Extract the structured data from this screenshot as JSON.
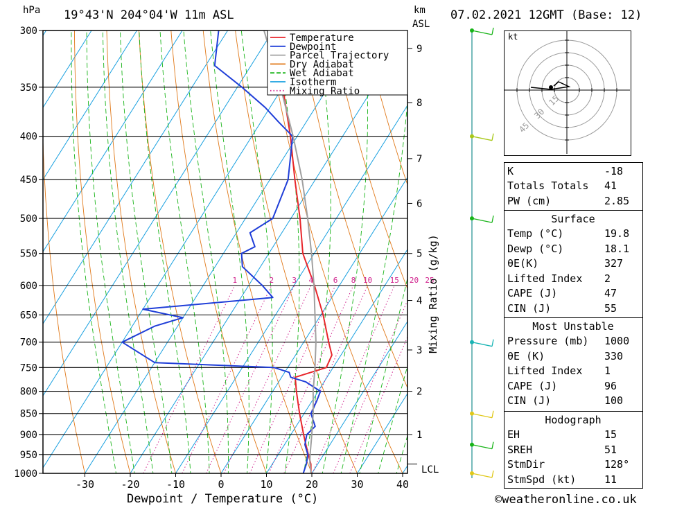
{
  "header": {
    "hpa_unit": "hPa",
    "location": "19°43'N  204°04'W  11m  ASL",
    "km_unit": "km",
    "asl_unit": "ASL",
    "datetime": "07.02.2021  12GMT  (Base: 12)"
  },
  "axes": {
    "pressure_ticks": [
      "300",
      "350",
      "400",
      "450",
      "500",
      "550",
      "600",
      "650",
      "700",
      "750",
      "800",
      "850",
      "900",
      "950",
      "1000"
    ],
    "temperature_ticks": [
      "-30",
      "-20",
      "-10",
      "0",
      "10",
      "20",
      "30",
      "40"
    ],
    "xlabel": "Dewpoint / Temperature (°C)",
    "km_ticks": [
      "9",
      "8",
      "7",
      "6",
      "5",
      "4",
      "3",
      "2",
      "1"
    ],
    "lcl_label": "LCL",
    "mixing_ratio_label": "Mixing Ratio (g/kg)",
    "mixing_ratio_values": [
      "1",
      "2",
      "3",
      "4",
      "6",
      "8",
      "10",
      "15",
      "20",
      "25"
    ]
  },
  "legend": {
    "items": [
      {
        "label": "Temperature",
        "color": "#e8262b"
      },
      {
        "label": "Dewpoint",
        "color": "#1f3ed8"
      },
      {
        "label": "Parcel Trajectory",
        "color": "#a0a0a0"
      },
      {
        "label": "Dry Adiabat",
        "color": "#e07818"
      },
      {
        "label": "Wet Adiabat",
        "color": "#18b418"
      },
      {
        "label": "Isotherm",
        "color": "#18a0e0"
      },
      {
        "label": "Mixing Ratio",
        "color": "#d0208c"
      }
    ]
  },
  "hodograph": {
    "unit": "kt",
    "ring_labels": [
      "15",
      "30",
      "45"
    ]
  },
  "indices": {
    "k_label": "K",
    "k_value": "-18",
    "tt_label": "Totals Totals",
    "tt_value": "41",
    "pw_label": "PW (cm)",
    "pw_value": "2.85"
  },
  "surface": {
    "title": "Surface",
    "temp_label": "Temp (°C)",
    "temp_value": "19.8",
    "dewp_label": "Dewp (°C)",
    "dewp_value": "18.1",
    "theta_e_label": "θE(K)",
    "theta_e_value": "327",
    "li_label": "Lifted Index",
    "li_value": "2",
    "cape_label": "CAPE (J)",
    "cape_value": "47",
    "cin_label": "CIN (J)",
    "cin_value": "55"
  },
  "most_unstable": {
    "title": "Most Unstable",
    "pressure_label": "Pressure (mb)",
    "pressure_value": "1000",
    "theta_e_label": "θE (K)",
    "theta_e_value": "330",
    "li_label": "Lifted Index",
    "li_value": "1",
    "cape_label": "CAPE (J)",
    "cape_value": "96",
    "cin_label": "CIN (J)",
    "cin_value": "100"
  },
  "hodo_params": {
    "title": "Hodograph",
    "eh_label": "EH",
    "eh_value": "15",
    "sreh_label": "SREH",
    "sreh_value": "51",
    "stmdir_label": "StmDir",
    "stmdir_value": "128°",
    "stmspd_label": "StmSpd (kt)",
    "stmspd_value": "11"
  },
  "footer": {
    "copyright": "©weatheronline.co.uk"
  },
  "chart_data": {
    "type": "line",
    "title": "19°43'N  204°04'W  11m  ASL",
    "xlabel": "Dewpoint / Temperature (°C)",
    "ylabel": "hPa",
    "xlim": [
      -40,
      40
    ],
    "ylim": [
      1000,
      300
    ],
    "series": [
      {
        "name": "Temperature",
        "unit": "°C",
        "pressure": [
          1000,
          975,
          950,
          925,
          900,
          850,
          800,
          770,
          750,
          725,
          700,
          650,
          600,
          550,
          500,
          450,
          400,
          350,
          300
        ],
        "values": [
          19.8,
          18.5,
          16.6,
          14.7,
          12.8,
          9.0,
          5.2,
          3.0,
          8.5,
          8.0,
          5.5,
          0.5,
          -5.5,
          -12.5,
          -18.0,
          -24.5,
          -31.5,
          -40.0,
          -50.5
        ]
      },
      {
        "name": "Dewpoint",
        "unit": "°C",
        "pressure": [
          1000,
          975,
          950,
          925,
          900,
          880,
          850,
          820,
          800,
          780,
          770,
          760,
          750,
          740,
          700,
          670,
          655,
          640,
          620,
          600,
          570,
          550,
          540,
          520,
          500,
          450,
          400,
          385,
          370,
          350,
          330,
          300
        ],
        "values": [
          18.1,
          17.5,
          16.5,
          14.5,
          13.5,
          14.2,
          11.5,
          11.0,
          10.5,
          6.0,
          2.0,
          1.0,
          -3.0,
          -30.0,
          -40.0,
          -35.0,
          -30.0,
          -40.0,
          -13.0,
          -17.0,
          -24.0,
          -26.0,
          -24.0,
          -27.0,
          -24.0,
          -26.0,
          -31.0,
          -36.0,
          -41.0,
          -49.0,
          -58.0,
          -62.0
        ]
      },
      {
        "name": "Parcel Trajectory",
        "pressure": [
          1000,
          970,
          950,
          900,
          850,
          800,
          750,
          700,
          650,
          600,
          550,
          500,
          450,
          400,
          350,
          300
        ],
        "values": [
          19.8,
          18.0,
          17.0,
          14.6,
          12.0,
          8.9,
          6.0,
          2.7,
          -1.3,
          -5.6,
          -10.6,
          -16.3,
          -22.9,
          -30.9,
          -40.5,
          -52.0
        ]
      }
    ],
    "lcl_pressure": 975,
    "km_levels": [
      {
        "km": "9",
        "p": 315
      },
      {
        "km": "8",
        "p": 365
      },
      {
        "km": "7",
        "p": 425
      },
      {
        "km": "6",
        "p": 480
      },
      {
        "km": "5",
        "p": 550
      },
      {
        "km": "4",
        "p": 625
      },
      {
        "km": "3",
        "p": 715
      },
      {
        "km": "2",
        "p": 800
      },
      {
        "km": "1",
        "p": 900
      }
    ],
    "mixing_ratio_g_kg": [
      1,
      2,
      3,
      4,
      6,
      8,
      10,
      15,
      20,
      25
    ],
    "wind_profile": {
      "pressure": [
        300,
        400,
        500,
        700,
        850,
        925,
        1000
      ],
      "barb_colors": [
        "#18b418",
        "#a8c818",
        "#18b418",
        "#18b4b4",
        "#e0c818",
        "#18b418",
        "#e0c818"
      ]
    }
  }
}
